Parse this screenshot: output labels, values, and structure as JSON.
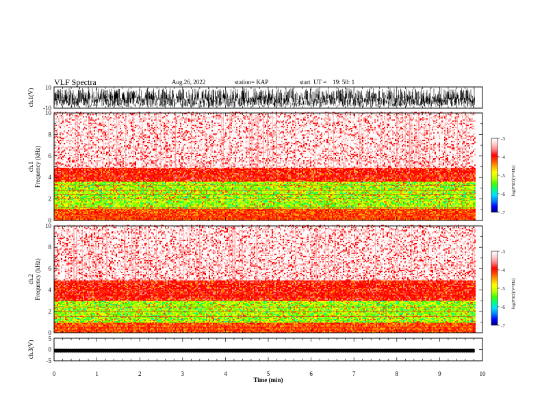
{
  "header": {
    "title": "VLF Spectra",
    "date": "Aug.26, 2022",
    "station": "station= KAP",
    "start": "start  UT =    19: 50: 1"
  },
  "colors": {
    "spectrogram": [
      "#0000a0",
      "#0000ff",
      "#00a0ff",
      "#00ffa0",
      "#40ff00",
      "#c0ff00",
      "#ffff00",
      "#ffb000",
      "#ff4000",
      "#ff0000",
      "#ff9090",
      "#ffe8e8",
      "#ffffff"
    ],
    "trace": "#000000"
  },
  "chart_data": [
    {
      "type": "line",
      "title": "",
      "ylabel": "ch.1(V)",
      "xlim": [
        0,
        10
      ],
      "ylim": [
        -10,
        10
      ],
      "yticks": [
        "10",
        "-10"
      ],
      "description_values": {
        "amplitude_min": -9,
        "amplitude_max": 9,
        "data_end_min": 9.82
      }
    },
    {
      "type": "heatmap",
      "ylabel": "ch.1\nFrequency (kHz)",
      "xlim": [
        0,
        10
      ],
      "ylim": [
        0,
        10
      ],
      "yticks": [
        "0",
        "2",
        "4",
        "6",
        "8",
        "10"
      ],
      "colorbar": {
        "label": "log(PSD)(V²/Hz)",
        "range": [
          -7,
          -3
        ],
        "ticks": [
          "-3",
          "-4",
          "-5",
          "-6",
          "-7"
        ]
      },
      "bands_khz": {
        "green_low": 1.0,
        "green_high": 3.6,
        "red_top": 4.8,
        "lines": [
          0.2,
          0.4,
          0.6,
          1.2,
          2.0,
          2.4,
          2.8,
          3.3
        ]
      }
    },
    {
      "type": "heatmap",
      "ylabel": "ch.2\nFrequency (kHz)",
      "xlim": [
        0,
        10
      ],
      "ylim": [
        0,
        10
      ],
      "yticks": [
        "0",
        "2",
        "4",
        "6",
        "8",
        "10"
      ],
      "colorbar": {
        "label": "log(PSD)(V²/Hz)",
        "range": [
          -7,
          -3
        ],
        "ticks": [
          "-3",
          "-4",
          "-5",
          "-6",
          "-7"
        ]
      },
      "bands_khz": {
        "green_low": 0.8,
        "green_high": 3.0,
        "red_top": 4.8,
        "lines": [
          0.2,
          0.5,
          1.0,
          1.5,
          2.0,
          2.4,
          3.0,
          3.5
        ]
      }
    },
    {
      "type": "line",
      "ylabel": "ch.3(V)",
      "xlabel": "Time (min)",
      "xlim": [
        0,
        10
      ],
      "ylim": [
        -5,
        5
      ],
      "yticks": [
        "5",
        "0",
        "-5"
      ],
      "xticks": [
        "0",
        "1",
        "2",
        "3",
        "4",
        "5",
        "6",
        "7",
        "8",
        "9",
        "10"
      ],
      "description_values": {
        "level": -0.5,
        "ripple": 0.4,
        "data_end_min": 9.82
      }
    }
  ]
}
